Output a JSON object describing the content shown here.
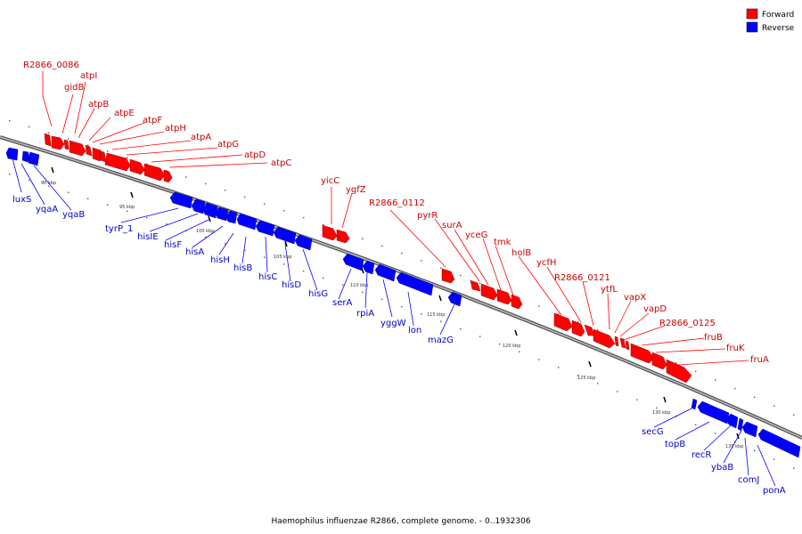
{
  "legend": {
    "forward": {
      "label": "Forward",
      "color": "#ff0000"
    },
    "reverse": {
      "label": "Reverse",
      "color": "#0000ff"
    }
  },
  "caption": "Haemophilus influenzae R2866, complete genome. - 0..1932306",
  "ticks": [
    "90 kbp",
    "95 kbp",
    "100 kbp",
    "105 kbp",
    "110 kbp",
    "115 kbp",
    "120 kbp",
    "125 kbp",
    "130 kbp",
    "135 kbp"
  ],
  "forward_genes": [
    "R2866_0086",
    "gidB",
    "atpI",
    "atpB",
    "atpE",
    "atpF",
    "atpH",
    "atpA",
    "atpG",
    "atpD",
    "atpC",
    "yicC",
    "ygfZ",
    "R2866_0112",
    "pyrR",
    "surA",
    "yceG",
    "tmk",
    "holB",
    "ycfH",
    "R2866_0121",
    "ytfL",
    "vapX",
    "vapD",
    "R2866_0125",
    "fruB",
    "fruK",
    "fruA"
  ],
  "reverse_genes": [
    "luxS",
    "yqaA",
    "yqaB",
    "tyrP_1",
    "hisIE",
    "hisF",
    "hisA",
    "hisH",
    "hisB",
    "hisC",
    "hisD",
    "hisG",
    "serA",
    "rpiA",
    "yggW",
    "lon",
    "mazG",
    "secG",
    "topB",
    "recR",
    "ybaB",
    "comJ",
    "ponA"
  ]
}
